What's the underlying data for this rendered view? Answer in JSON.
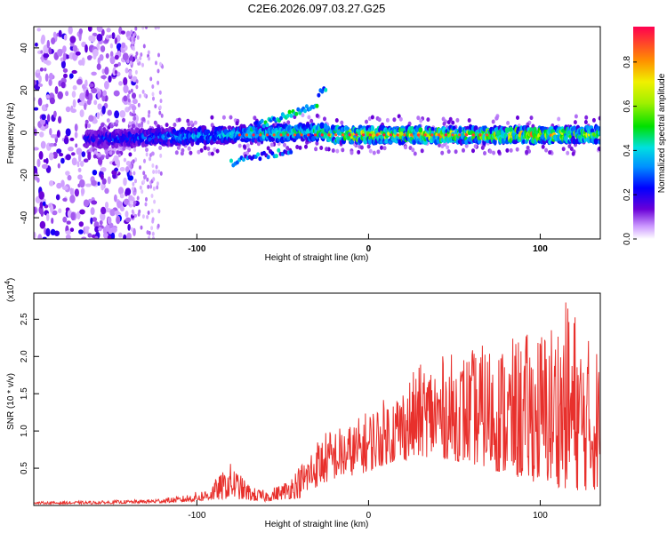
{
  "chart_data": [
    {
      "type": "heatmap",
      "title": "C2E6.2026.097.03.27.G25",
      "xlabel": "Height of straight line (km)",
      "ylabel": "Frequency (Hz)",
      "xlim": [
        -195,
        135
      ],
      "ylim": [
        -50,
        50
      ],
      "x_ticks": [
        -100,
        0,
        100
      ],
      "y_ticks": [
        -40,
        -20,
        0,
        20,
        40
      ],
      "colorbar": {
        "label": "Normalized spectral amplitude",
        "range": [
          0,
          0.96
        ],
        "ticks": [
          "0.0",
          "0.2",
          "0.4",
          "0.6",
          "0.8"
        ],
        "tick_values": [
          0.0,
          0.2,
          0.4,
          0.6,
          0.8
        ]
      },
      "features": [
        {
          "name": "broadband noise",
          "x_range": [
            -195,
            -130
          ],
          "freq_range": [
            -50,
            50
          ],
          "amplitude": 0.12
        },
        {
          "name": "main ridge",
          "x_range": [
            -165,
            135
          ],
          "freq_center": [
            -3,
            0
          ],
          "amplitude_peak": 0.95
        },
        {
          "name": "upper branch",
          "x_range": [
            -70,
            -25
          ],
          "freq_center": [
            2,
            22
          ]
        },
        {
          "name": "lower branch",
          "x_range": [
            -80,
            -45
          ],
          "freq_center": [
            -15,
            -8
          ]
        }
      ]
    },
    {
      "type": "line",
      "xlabel": "Height of straight line (km)",
      "ylabel": "SNR (10 * v/v)",
      "y_scale_label": "(x10",
      "y_scale_exp": "4",
      "y_scale_close": ")",
      "xlim": [
        -195,
        135
      ],
      "ylim": [
        0,
        2.85
      ],
      "x_ticks": [
        -100,
        0,
        100
      ],
      "y_ticks": [
        "0.5",
        "1.0",
        "1.5",
        "2.0",
        "2.5"
      ],
      "y_tick_values": [
        0.5,
        1.0,
        1.5,
        2.0,
        2.5
      ],
      "series_color": "#e8302c",
      "envelope": {
        "x": [
          -195,
          -160,
          -130,
          -110,
          -95,
          -85,
          -80,
          -75,
          -68,
          -60,
          -50,
          -40,
          -30,
          -25,
          -20,
          -10,
          0,
          10,
          20,
          30,
          40,
          50,
          60,
          70,
          80,
          90,
          100,
          110,
          118,
          125,
          135
        ],
        "peak": [
          0.05,
          0.06,
          0.08,
          0.12,
          0.22,
          0.45,
          0.58,
          0.42,
          0.25,
          0.2,
          0.3,
          0.55,
          0.9,
          1.0,
          1.05,
          1.1,
          1.3,
          1.45,
          1.65,
          1.9,
          2.0,
          2.05,
          2.1,
          2.2,
          2.2,
          2.3,
          2.4,
          2.6,
          2.85,
          2.3,
          2.2
        ],
        "base": [
          0.02,
          0.02,
          0.03,
          0.04,
          0.06,
          0.08,
          0.1,
          0.08,
          0.06,
          0.05,
          0.08,
          0.1,
          0.25,
          0.3,
          0.35,
          0.4,
          0.45,
          0.55,
          0.6,
          0.65,
          0.65,
          0.6,
          0.55,
          0.5,
          0.4,
          0.35,
          0.3,
          0.25,
          0.2,
          0.2,
          0.2
        ]
      }
    }
  ]
}
